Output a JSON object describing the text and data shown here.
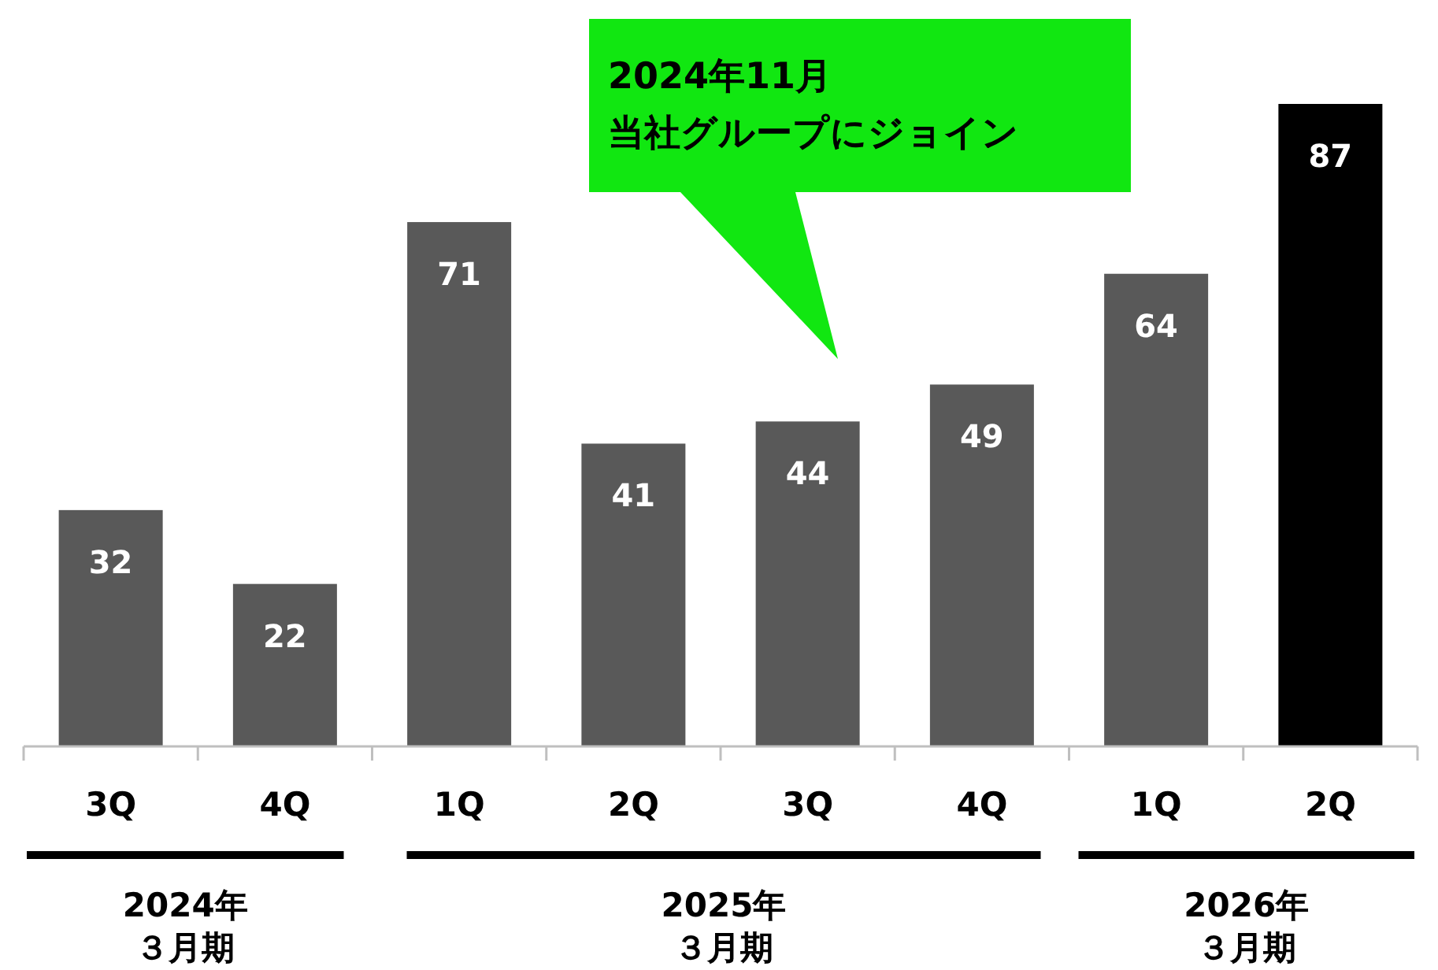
{
  "chart_data": {
    "type": "bar",
    "categories": [
      "3Q",
      "4Q",
      "1Q",
      "2Q",
      "3Q",
      "4Q",
      "1Q",
      "2Q"
    ],
    "values": [
      32,
      22,
      71,
      41,
      44,
      49,
      64,
      87
    ],
    "colors": [
      "#595959",
      "#595959",
      "#595959",
      "#595959",
      "#595959",
      "#595959",
      "#595959",
      "#000000"
    ],
    "data_labels": true,
    "annotations": [
      "2024年11月",
      "当社グループにジョイン",
      "2024年",
      "３月期",
      "2025年",
      "３月期",
      "2026年",
      "３月期"
    ]
  }
}
